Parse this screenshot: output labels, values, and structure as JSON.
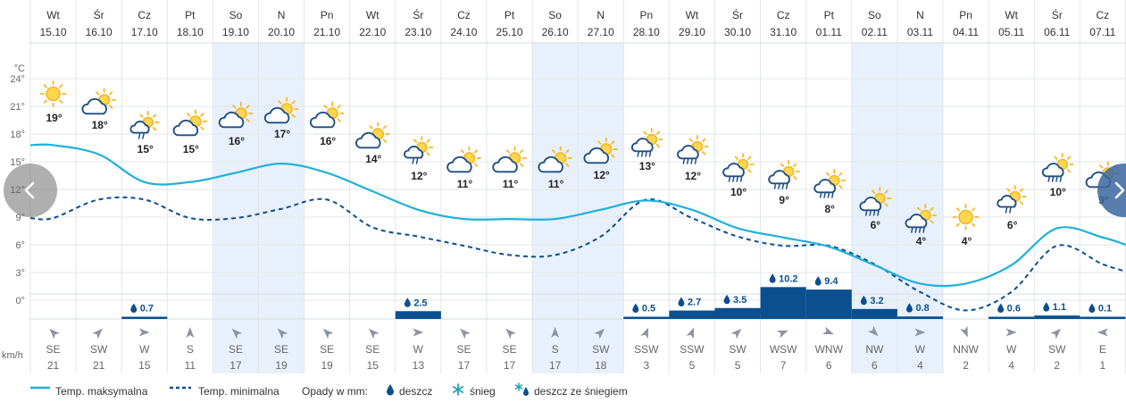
{
  "chart_data": {
    "type": "line",
    "days": [
      {
        "dow": "Wt",
        "date": "15.10",
        "weekend": false
      },
      {
        "dow": "Śr",
        "date": "16.10",
        "weekend": false
      },
      {
        "dow": "Cz",
        "date": "17.10",
        "weekend": false
      },
      {
        "dow": "Pt",
        "date": "18.10",
        "weekend": false
      },
      {
        "dow": "So",
        "date": "19.10",
        "weekend": true
      },
      {
        "dow": "N",
        "date": "20.10",
        "weekend": true
      },
      {
        "dow": "Pn",
        "date": "21.10",
        "weekend": false
      },
      {
        "dow": "Wt",
        "date": "22.10",
        "weekend": false
      },
      {
        "dow": "Śr",
        "date": "23.10",
        "weekend": false
      },
      {
        "dow": "Cz",
        "date": "24.10",
        "weekend": false
      },
      {
        "dow": "Pt",
        "date": "25.10",
        "weekend": false
      },
      {
        "dow": "So",
        "date": "26.10",
        "weekend": true
      },
      {
        "dow": "N",
        "date": "27.10",
        "weekend": true
      },
      {
        "dow": "Pn",
        "date": "28.10",
        "weekend": false
      },
      {
        "dow": "Wt",
        "date": "29.10",
        "weekend": false
      },
      {
        "dow": "Śr",
        "date": "30.10",
        "weekend": false
      },
      {
        "dow": "Cz",
        "date": "31.10",
        "weekend": false
      },
      {
        "dow": "Pt",
        "date": "01.11",
        "weekend": false
      },
      {
        "dow": "So",
        "date": "02.11",
        "weekend": true
      },
      {
        "dow": "N",
        "date": "03.11",
        "weekend": true
      },
      {
        "dow": "Pn",
        "date": "04.11",
        "weekend": false
      },
      {
        "dow": "Wt",
        "date": "05.11",
        "weekend": false
      },
      {
        "dow": "Śr",
        "date": "06.11",
        "weekend": false
      },
      {
        "dow": "Cz",
        "date": "07.11",
        "weekend": false
      }
    ],
    "y_unit": "°C",
    "y_ticks": [
      "24°",
      "21°",
      "18°",
      "15°",
      "12°",
      "9°",
      "6°",
      "3°",
      "0°"
    ],
    "ylim": [
      0,
      26
    ],
    "series": [
      {
        "name": "Temp. maksymalna",
        "color": "#1fb0dc",
        "style": "solid",
        "values": [
          19,
          18,
          15,
          15,
          16,
          17,
          16,
          14,
          12,
          11,
          11,
          11,
          12,
          13,
          12,
          10,
          9,
          8,
          6,
          4,
          4,
          6,
          10,
          9
        ]
      },
      {
        "name": "Temp. minimalna",
        "color": "#0b4f91",
        "style": "dashed",
        "values": [
          9,
          11,
          11,
          9,
          9,
          10,
          11,
          8,
          7,
          6,
          5,
          5,
          7,
          11,
          9,
          7,
          6,
          6,
          4,
          1,
          -1,
          1,
          6,
          4
        ]
      }
    ],
    "weather_icons": [
      "sun",
      "cloud-sun",
      "sun-cloud-rain",
      "cloud-sun",
      "cloud-sun",
      "cloud-sun",
      "cloud-sun",
      "cloud-sun",
      "sun-cloud-rain",
      "cloud-sun",
      "cloud-sun",
      "cloud-sun",
      "cloud-sun",
      "cloud-sun-rain",
      "cloud-sun-rain",
      "cloud-sun-rain",
      "cloud-sun-rain",
      "cloud-sun-rain",
      "cloud-sun-rain",
      "cloud-sun-rain",
      "sun",
      "sun-cloud-rain",
      "cloud-sun-rain",
      "cloud-sun"
    ],
    "temp_labels": [
      "19°",
      "18°",
      "15°",
      "15°",
      "16°",
      "17°",
      "16°",
      "14°",
      "12°",
      "11°",
      "11°",
      "11°",
      "12°",
      "13°",
      "12°",
      "10°",
      "9°",
      "8°",
      "6°",
      "4°",
      "4°",
      "6°",
      "10°",
      "9°"
    ],
    "precipitation": {
      "unit": "mm",
      "values": [
        0,
        0,
        0.7,
        0,
        0,
        0,
        0,
        0,
        2.5,
        0,
        0,
        0,
        0,
        0.5,
        2.7,
        3.5,
        10.2,
        9.4,
        3.2,
        0.8,
        0,
        0.6,
        1.1,
        0.1
      ],
      "labels": [
        "",
        "",
        "0.7",
        "",
        "",
        "",
        "",
        "",
        "2.5",
        "",
        "",
        "",
        "",
        "0.5",
        "2.7",
        "3.5",
        "10.2",
        "9.4",
        "3.2",
        "0.8",
        "",
        "0.6",
        "1.1",
        "0.1"
      ],
      "color": "#0b4f91"
    },
    "wind": {
      "unit": "km/h",
      "directions": [
        "SE",
        "SW",
        "W",
        "S",
        "SE",
        "SE",
        "SE",
        "SE",
        "W",
        "SE",
        "SE",
        "S",
        "SW",
        "SSW",
        "SSW",
        "SW",
        "WSW",
        "WNW",
        "NW",
        "W",
        "NNW",
        "W",
        "SW",
        "E"
      ],
      "speeds": [
        "21",
        "21",
        "15",
        "11",
        "17",
        "19",
        "19",
        "15",
        "13",
        "17",
        "17",
        "17",
        "18",
        "3",
        "5",
        "5",
        "7",
        "6",
        "6",
        "4",
        "2",
        "4",
        "2",
        "1"
      ]
    },
    "legend": {
      "max_label": "Temp. maksymalna",
      "min_label": "Temp. minimalna",
      "precip_title": "Opady w mm:",
      "rain_label": "deszcz",
      "snow_label": "śnieg",
      "sleet_label": "deszcz ze śniegiem"
    },
    "colors": {
      "weekend_bg": "#e8f1fb",
      "grid": "#e2e6ea",
      "sun": "#f6b722",
      "cloud": "#1f4f86",
      "rain": "#1f4f86"
    }
  }
}
